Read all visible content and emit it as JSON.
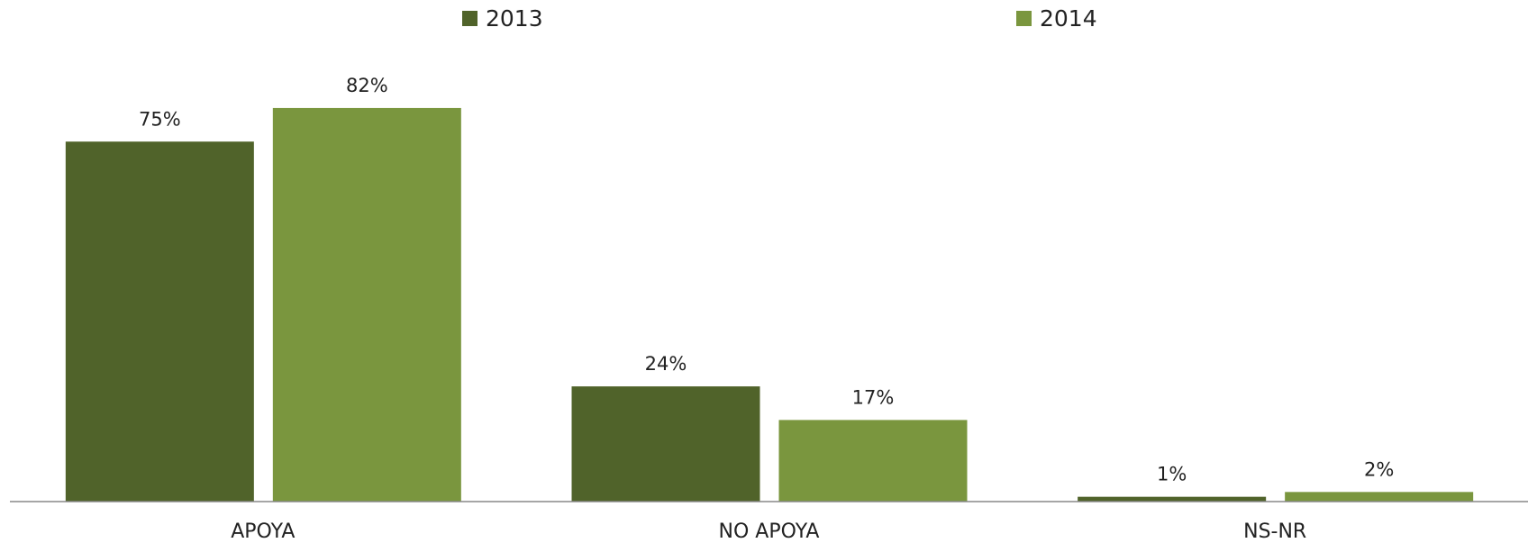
{
  "chart_data": {
    "type": "bar",
    "categories": [
      "APOYA",
      "NO APOYA",
      "NS-NR"
    ],
    "series": [
      {
        "name": "2013",
        "color": "#50632a",
        "values": [
          75,
          24,
          1
        ],
        "value_labels": [
          "75%",
          "24%",
          "1%"
        ]
      },
      {
        "name": "2014",
        "color": "#7a963e",
        "values": [
          82,
          17,
          2
        ],
        "value_labels": [
          "82%",
          "17%",
          "2%"
        ]
      }
    ]
  }
}
